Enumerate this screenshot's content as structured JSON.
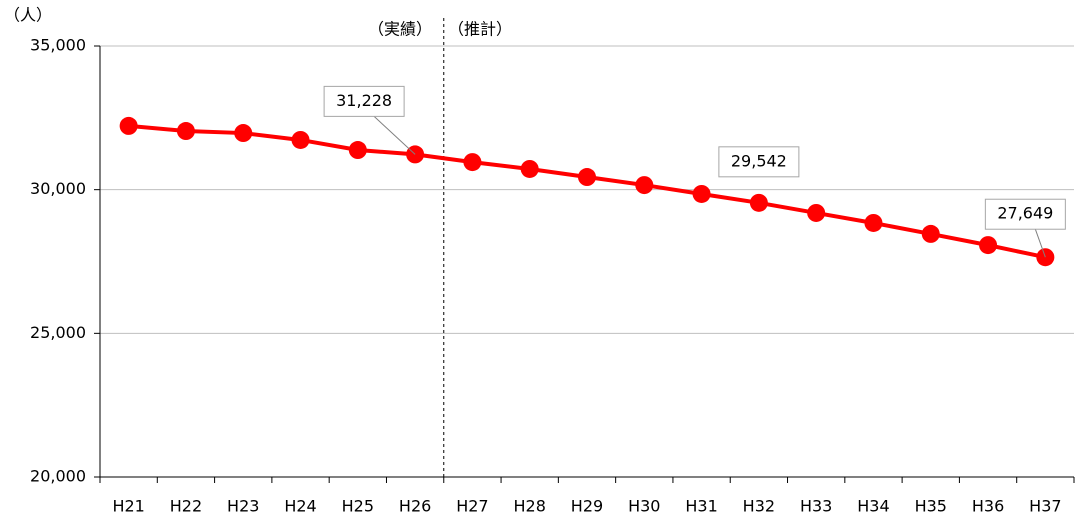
{
  "chart_data": {
    "type": "line",
    "y_unit": "（人）",
    "period_labels": [
      "（実績）",
      "（推計）"
    ],
    "categories": [
      "H21",
      "H22",
      "H23",
      "H24",
      "H25",
      "H26",
      "H27",
      "H28",
      "H29",
      "H30",
      "H31",
      "H32",
      "H33",
      "H34",
      "H35",
      "H36",
      "H37"
    ],
    "values": [
      32220,
      32040,
      31970,
      31730,
      31380,
      31228,
      30960,
      30720,
      30440,
      30160,
      29850,
      29542,
      29190,
      28840,
      28460,
      28070,
      27649
    ],
    "value_labels": [
      null,
      null,
      null,
      null,
      null,
      "31,228",
      null,
      null,
      null,
      null,
      null,
      "29,542",
      null,
      null,
      null,
      null,
      "27,649"
    ],
    "color": "#ff0000",
    "ylim": [
      20000,
      35000
    ],
    "yticks": [
      {
        "value": 20000,
        "label": "20,000"
      },
      {
        "value": 25000,
        "label": "25,000"
      },
      {
        "value": 30000,
        "label": "30,000"
      },
      {
        "value": 35000,
        "label": "35,000"
      }
    ],
    "grid": true
  }
}
